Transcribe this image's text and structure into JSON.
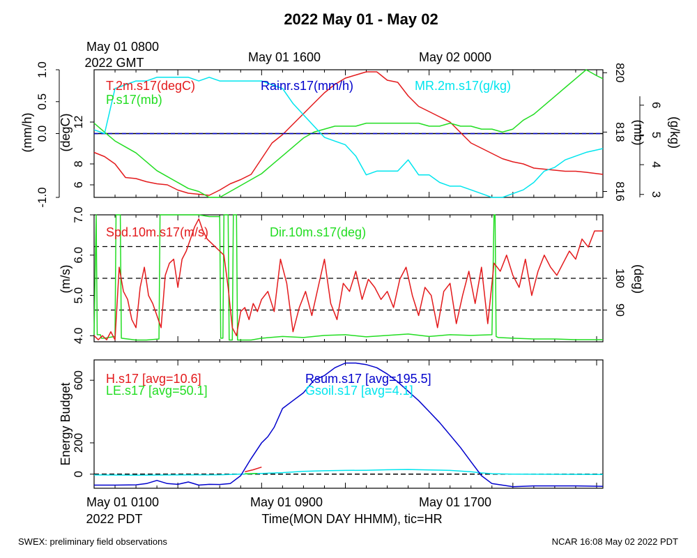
{
  "title": "2022 May 01 - May 02",
  "colors": {
    "red": "#e31a1c",
    "green": "#22dd22",
    "blue": "#0000cc",
    "cyan": "#00e5ee",
    "black": "#000000"
  },
  "top_axis": {
    "labels": [
      {
        "line1": "May 01 0800",
        "line2": "2022 GMT",
        "hour": 0
      },
      {
        "line1": "May 01 1600",
        "line2": "",
        "hour": 8
      },
      {
        "line1": "May 02 0000",
        "line2": "",
        "hour": 16
      }
    ]
  },
  "bottom_axis": {
    "labels": [
      {
        "line1": "May 01 0100",
        "line2": "2022 PDT",
        "hour": 0
      },
      {
        "line1": "May 01 0900",
        "line2": "",
        "hour": 8
      },
      {
        "line1": "May 01 1700",
        "line2": "",
        "hour": 16
      }
    ],
    "xlabel": "Time(MON DAY HHMM), tic=HR"
  },
  "footer": {
    "left": "SWEX: preliminary field observations",
    "right": "NCAR 16:08 May 02 2022 PDT"
  },
  "chart_data": [
    {
      "type": "line",
      "panel": "top",
      "x_range_hours": [
        0,
        24.3
      ],
      "axes": {
        "left_outer": {
          "label": "(mm/h)",
          "ticks": [
            "-1.0",
            "0.0",
            "0.5",
            "1.0"
          ],
          "range": [
            -1.0,
            1.0
          ]
        },
        "left_inner": {
          "label": "(degC)",
          "ticks": [
            "6",
            "8",
            "12"
          ],
          "range": [
            4.8,
            17.0
          ]
        },
        "right_inner": {
          "label": "(mb)",
          "ticks": [
            "816",
            "818",
            "820"
          ],
          "range": [
            815.8,
            820.1
          ]
        },
        "right_outer": {
          "label": "(g/kg)",
          "ticks": [
            "3",
            "4",
            "5",
            "6"
          ],
          "range": [
            2.9,
            6.3
          ]
        }
      },
      "zero_line": 0.0,
      "series": [
        {
          "name": "T.2m.s17(degC)",
          "axis": "left_inner",
          "color": "red",
          "x": [
            0,
            0.5,
            1,
            1.5,
            2,
            2.5,
            3,
            3.5,
            4,
            4.5,
            5,
            5.5,
            6,
            6.5,
            7,
            7.5,
            8,
            8.5,
            9,
            9.5,
            10,
            10.5,
            11,
            11.5,
            12,
            12.5,
            13,
            13.5,
            14,
            14.5,
            15,
            15.5,
            16,
            16.5,
            17,
            17.5,
            18,
            18.5,
            19,
            19.5,
            20,
            20.5,
            21,
            21.5,
            22,
            22.5,
            23,
            23.5,
            24.3
          ],
          "values": [
            9.1,
            8.7,
            8.0,
            6.7,
            6.6,
            6.3,
            6.1,
            6.0,
            5.5,
            5.2,
            5.1,
            5.0,
            5.5,
            6.1,
            6.5,
            7.0,
            8.5,
            10.0,
            10.8,
            11.8,
            12.8,
            13.8,
            14.8,
            15.6,
            16.2,
            16.5,
            16.8,
            16.8,
            16.0,
            15.8,
            14.5,
            13.5,
            13.0,
            12.5,
            12.0,
            11.0,
            10.0,
            9.5,
            9.0,
            8.5,
            8.2,
            8.0,
            7.6,
            7.5,
            7.4,
            7.3,
            7.3,
            7.2,
            7.0
          ]
        },
        {
          "name": "P.s17(mb)",
          "axis": "right_inner",
          "color": "green",
          "x": [
            0,
            0.5,
            1,
            1.5,
            2,
            2.5,
            3,
            3.5,
            4,
            4.5,
            5,
            5.5,
            6,
            6.5,
            7,
            7.5,
            8,
            8.5,
            9,
            9.5,
            10,
            10.5,
            11,
            11.5,
            12,
            12.5,
            13,
            13.5,
            14,
            14.5,
            15,
            15.5,
            16,
            16.5,
            17,
            17.5,
            18,
            18.5,
            19,
            19.5,
            20,
            20.5,
            21,
            21.5,
            22,
            22.5,
            23,
            23.5,
            24,
            24.3
          ],
          "values": [
            818.3,
            818.0,
            817.7,
            817.5,
            817.3,
            817.0,
            816.7,
            816.5,
            816.3,
            816.1,
            816.0,
            815.8,
            815.8,
            816.0,
            816.2,
            816.4,
            816.6,
            816.9,
            817.2,
            817.5,
            817.8,
            818.0,
            818.1,
            818.2,
            818.2,
            818.2,
            818.3,
            818.3,
            818.3,
            818.3,
            818.3,
            818.3,
            818.2,
            818.2,
            818.3,
            818.2,
            818.2,
            818.1,
            818.1,
            818.0,
            818.1,
            818.4,
            818.6,
            818.9,
            819.2,
            819.5,
            819.8,
            820.1,
            819.9,
            819.8
          ]
        },
        {
          "name": "Rainr.s17(mm/h)",
          "axis": "left_outer",
          "color": "blue",
          "x": [
            0,
            24.3
          ],
          "values": [
            0.0,
            0.0
          ]
        },
        {
          "name": "MR.2m.s17(g/kg)",
          "axis": "right_outer",
          "color": "cyan",
          "x": [
            0,
            0.5,
            1,
            1.5,
            2,
            2.5,
            3,
            3.5,
            4,
            4.5,
            5,
            5.5,
            6,
            6.5,
            7,
            7.5,
            8,
            8.5,
            9,
            9.5,
            10,
            10.5,
            11,
            11.5,
            12,
            12.5,
            13,
            13.5,
            14,
            14.5,
            15,
            15.5,
            16,
            16.5,
            17,
            17.5,
            18,
            18.5,
            19,
            19.5,
            20,
            20.5,
            21,
            21.5,
            22,
            22.5,
            23,
            23.5,
            24.3
          ],
          "values": [
            4.7,
            4.6,
            5.8,
            5.9,
            6.0,
            6.0,
            6.1,
            6.1,
            6.1,
            6.1,
            6.0,
            6.1,
            6.0,
            6.0,
            6.0,
            6.0,
            6.0,
            5.9,
            5.8,
            5.4,
            5.1,
            4.8,
            4.5,
            4.4,
            4.3,
            4.0,
            3.5,
            3.6,
            3.6,
            3.6,
            3.9,
            3.5,
            3.5,
            3.3,
            3.2,
            3.2,
            3.1,
            3.0,
            2.9,
            2.9,
            3.0,
            3.1,
            3.3,
            3.6,
            3.7,
            3.9,
            4.0,
            4.1,
            4.2
          ]
        }
      ],
      "legend_placement": "top"
    },
    {
      "type": "line",
      "panel": "middle",
      "x_range_hours": [
        0,
        24.3
      ],
      "axes": {
        "left": {
          "label": "(m/s)",
          "ticks": [
            "4.0",
            "5.0",
            "6.0",
            "7.0"
          ],
          "range": [
            3.85,
            7.0
          ]
        },
        "right": {
          "label": "(deg)",
          "ticks": [
            "90",
            "180"
          ],
          "range": [
            0,
            360
          ]
        }
      },
      "reference_lines": [
        90,
        180,
        270
      ],
      "series": [
        {
          "name": "Spd.10m.s17(m/s)",
          "axis": "left",
          "color": "red",
          "x": [
            0,
            0.2,
            0.4,
            0.6,
            0.8,
            1.0,
            1.2,
            1.4,
            1.6,
            1.8,
            2.0,
            2.2,
            2.4,
            2.6,
            2.8,
            3.0,
            3.2,
            3.4,
            3.6,
            3.8,
            4.0,
            4.2,
            4.4,
            4.6,
            4.8,
            5.0,
            5.2,
            5.4,
            5.6,
            5.8,
            6.0,
            6.2,
            6.4,
            6.6,
            6.8,
            7.0,
            7.2,
            7.4,
            7.6,
            7.8,
            8.0,
            8.3,
            8.6,
            8.9,
            9.2,
            9.5,
            9.8,
            10.1,
            10.4,
            10.7,
            11.0,
            11.3,
            11.6,
            11.9,
            12.2,
            12.5,
            12.8,
            13.1,
            13.4,
            13.7,
            14.0,
            14.3,
            14.6,
            14.9,
            15.2,
            15.5,
            15.8,
            16.1,
            16.4,
            16.7,
            17.0,
            17.3,
            17.6,
            17.9,
            18.2,
            18.5,
            18.8,
            19.1,
            19.4,
            19.7,
            20.0,
            20.3,
            20.6,
            20.9,
            21.2,
            21.5,
            21.8,
            22.1,
            22.4,
            22.7,
            23.0,
            23.3,
            23.6,
            23.9,
            24.3
          ],
          "values": [
            4.0,
            3.9,
            4.0,
            3.9,
            4.1,
            3.9,
            5.7,
            5.1,
            4.9,
            4.4,
            4.2,
            5.2,
            5.7,
            5.0,
            4.8,
            4.5,
            4.2,
            5.5,
            5.8,
            5.9,
            5.2,
            5.9,
            6.1,
            6.4,
            6.7,
            6.9,
            6.6,
            6.4,
            6.3,
            6.2,
            6.1,
            6.0,
            5.2,
            4.2,
            4.0,
            4.6,
            4.7,
            4.4,
            4.8,
            4.6,
            4.9,
            5.1,
            4.6,
            5.9,
            5.3,
            4.1,
            4.7,
            5.1,
            4.5,
            5.2,
            5.9,
            4.8,
            4.4,
            5.3,
            5.1,
            5.6,
            4.9,
            5.4,
            5.2,
            4.9,
            5.1,
            4.7,
            5.4,
            5.7,
            5.0,
            4.5,
            5.2,
            5.0,
            4.2,
            5.1,
            5.3,
            4.3,
            5.0,
            5.6,
            4.8,
            5.7,
            4.3,
            5.8,
            5.6,
            6.0,
            5.5,
            5.2,
            5.9,
            5.0,
            5.6,
            6.0,
            5.7,
            5.5,
            5.8,
            6.1,
            5.9,
            6.4,
            6.2,
            6.6,
            6.6
          ]
        },
        {
          "name": "Dir.10m.s17(deg)",
          "axis": "right",
          "color": "green",
          "x": [
            0,
            0.1,
            0.15,
            0.3,
            0.35,
            0.5,
            1.0,
            1.05,
            1.25,
            1.3,
            2.0,
            2.5,
            3.1,
            3.15,
            3.5,
            4.0,
            4.5,
            5.0,
            5.5,
            6.0,
            6.05,
            6.15,
            6.2,
            6.4,
            6.45,
            6.6,
            6.65,
            6.8,
            6.85,
            7.0,
            7.5,
            8.0,
            9.0,
            10.0,
            11.0,
            12.0,
            13.0,
            14.0,
            15.0,
            16.0,
            17.0,
            18.0,
            19.0,
            19.1,
            19.15,
            19.2,
            19.3,
            20.0,
            21.0,
            22.0,
            23.0,
            24.3
          ],
          "values": [
            20,
            360,
            20,
            20,
            10,
            10,
            15,
            360,
            360,
            10,
            5,
            5,
            8,
            360,
            360,
            360,
            360,
            360,
            355,
            355,
            10,
            10,
            360,
            360,
            5,
            5,
            360,
            360,
            5,
            5,
            5,
            10,
            15,
            12,
            18,
            20,
            14,
            18,
            22,
            15,
            20,
            18,
            20,
            360,
            360,
            15,
            12,
            10,
            8,
            8,
            6,
            6
          ]
        }
      ],
      "legend_placement": "top"
    },
    {
      "type": "line",
      "panel": "bottom",
      "x_range_hours": [
        0,
        24.3
      ],
      "axes": {
        "left": {
          "label": "Energy Budget",
          "ticks": [
            "0",
            "200",
            "600"
          ],
          "range": [
            -90,
            730
          ]
        }
      },
      "zero_line": 0,
      "series": [
        {
          "name": "H.s17 [avg=10.6]",
          "color": "red",
          "x": [
            7.2,
            7.6,
            8.0
          ],
          "values": [
            15,
            28,
            45
          ]
        },
        {
          "name": "LE.s17 [avg=50.1]",
          "color": "green",
          "x": [
            7.2,
            7.8
          ],
          "values": [
            3,
            5
          ]
        },
        {
          "name": "Rsum.s17 [avg=195.5]",
          "color": "blue",
          "x": [
            0,
            1,
            2,
            2.5,
            3,
            3.5,
            4,
            4.5,
            5,
            5.5,
            6,
            6.5,
            7,
            7.5,
            8,
            8.3,
            8.6,
            9.0,
            9.5,
            10,
            10.5,
            11,
            11.5,
            12,
            12.5,
            13,
            13.5,
            14,
            14.5,
            15,
            15.5,
            16,
            16.5,
            17,
            17.5,
            18,
            18.5,
            19,
            20,
            21,
            22,
            23,
            24.3
          ],
          "values": [
            -70,
            -70,
            -68,
            -60,
            -40,
            -60,
            -65,
            -50,
            -70,
            -65,
            -66,
            -60,
            -10,
            100,
            200,
            240,
            300,
            420,
            470,
            520,
            600,
            630,
            680,
            710,
            710,
            700,
            680,
            640,
            590,
            530,
            470,
            400,
            330,
            250,
            170,
            80,
            -10,
            -60,
            -80,
            -75,
            -75,
            -75,
            -78
          ]
        },
        {
          "name": "Gsoil.s17 [avg=4.1]",
          "color": "cyan",
          "x": [
            0,
            2,
            4,
            6,
            7,
            8,
            9,
            10,
            11,
            12,
            13,
            14,
            15,
            16,
            17,
            18,
            18.5,
            19,
            20,
            22,
            24.3
          ],
          "values": [
            -5,
            -6,
            -5,
            -4,
            0,
            5,
            10,
            18,
            22,
            24,
            25,
            28,
            30,
            27,
            24,
            15,
            8,
            3,
            0,
            -1,
            -2
          ]
        }
      ],
      "legend_placement": "top"
    }
  ]
}
